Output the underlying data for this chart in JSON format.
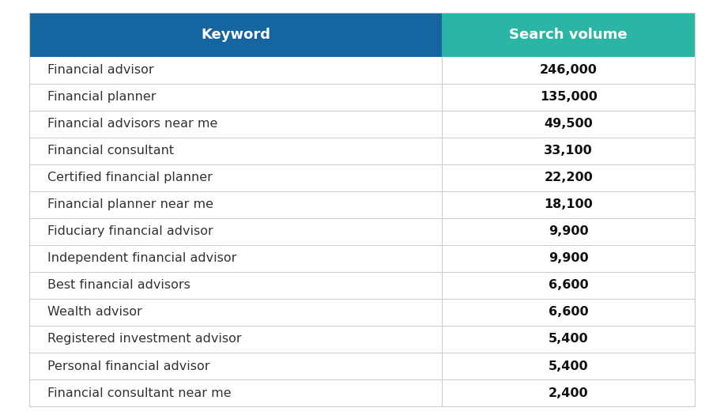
{
  "headers": [
    "Keyword",
    "Search volume"
  ],
  "rows": [
    [
      "Financial advisor",
      "246,000"
    ],
    [
      "Financial planner",
      "135,000"
    ],
    [
      "Financial advisors near me",
      "49,500"
    ],
    [
      "Financial consultant",
      "33,100"
    ],
    [
      "Certified financial planner",
      "22,200"
    ],
    [
      "Financial planner near me",
      "18,100"
    ],
    [
      "Fiduciary financial advisor",
      "9,900"
    ],
    [
      "Independent financial advisor",
      "9,900"
    ],
    [
      "Best financial advisors",
      "6,600"
    ],
    [
      "Wealth advisor",
      "6,600"
    ],
    [
      "Registered investment advisor",
      "5,400"
    ],
    [
      "Personal financial advisor",
      "5,400"
    ],
    [
      "Financial consultant near me",
      "2,400"
    ]
  ],
  "header_bg_keyword": "#1565a0",
  "header_bg_search": "#2ab5a5",
  "header_text_color": "#ffffff",
  "row_text_color_keyword": "#333333",
  "row_text_color_value": "#111111",
  "divider_color": "#cccccc",
  "background_color": "#ffffff",
  "header_fontsize": 13,
  "row_fontsize": 11.5,
  "col_split": 0.62
}
